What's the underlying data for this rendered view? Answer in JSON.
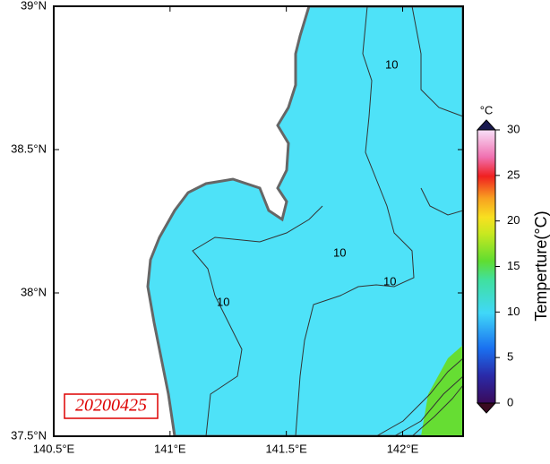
{
  "map": {
    "xlim": [
      140.5,
      142.26
    ],
    "ylim": [
      37.5,
      39
    ],
    "xticks": [
      {
        "value": 140.5,
        "label": "140.5°E"
      },
      {
        "value": 141,
        "label": "141°E"
      },
      {
        "value": 141.5,
        "label": "141.5°E"
      },
      {
        "value": 142,
        "label": "142°E"
      }
    ],
    "yticks": [
      {
        "value": 37.5,
        "label": "37.5°N"
      },
      {
        "value": 38,
        "label": "38°N"
      },
      {
        "value": 38.5,
        "label": "38.5°N"
      },
      {
        "value": 39,
        "label": "39°N"
      }
    ],
    "date": "20200425",
    "contour_labels": [
      "10",
      "10",
      "10",
      "10"
    ]
  },
  "colorbar": {
    "unit": "°C",
    "label": "Temperture(°C)",
    "lim": [
      0,
      30
    ],
    "ticks": [
      0,
      5,
      10,
      15,
      20,
      25,
      30
    ]
  }
}
